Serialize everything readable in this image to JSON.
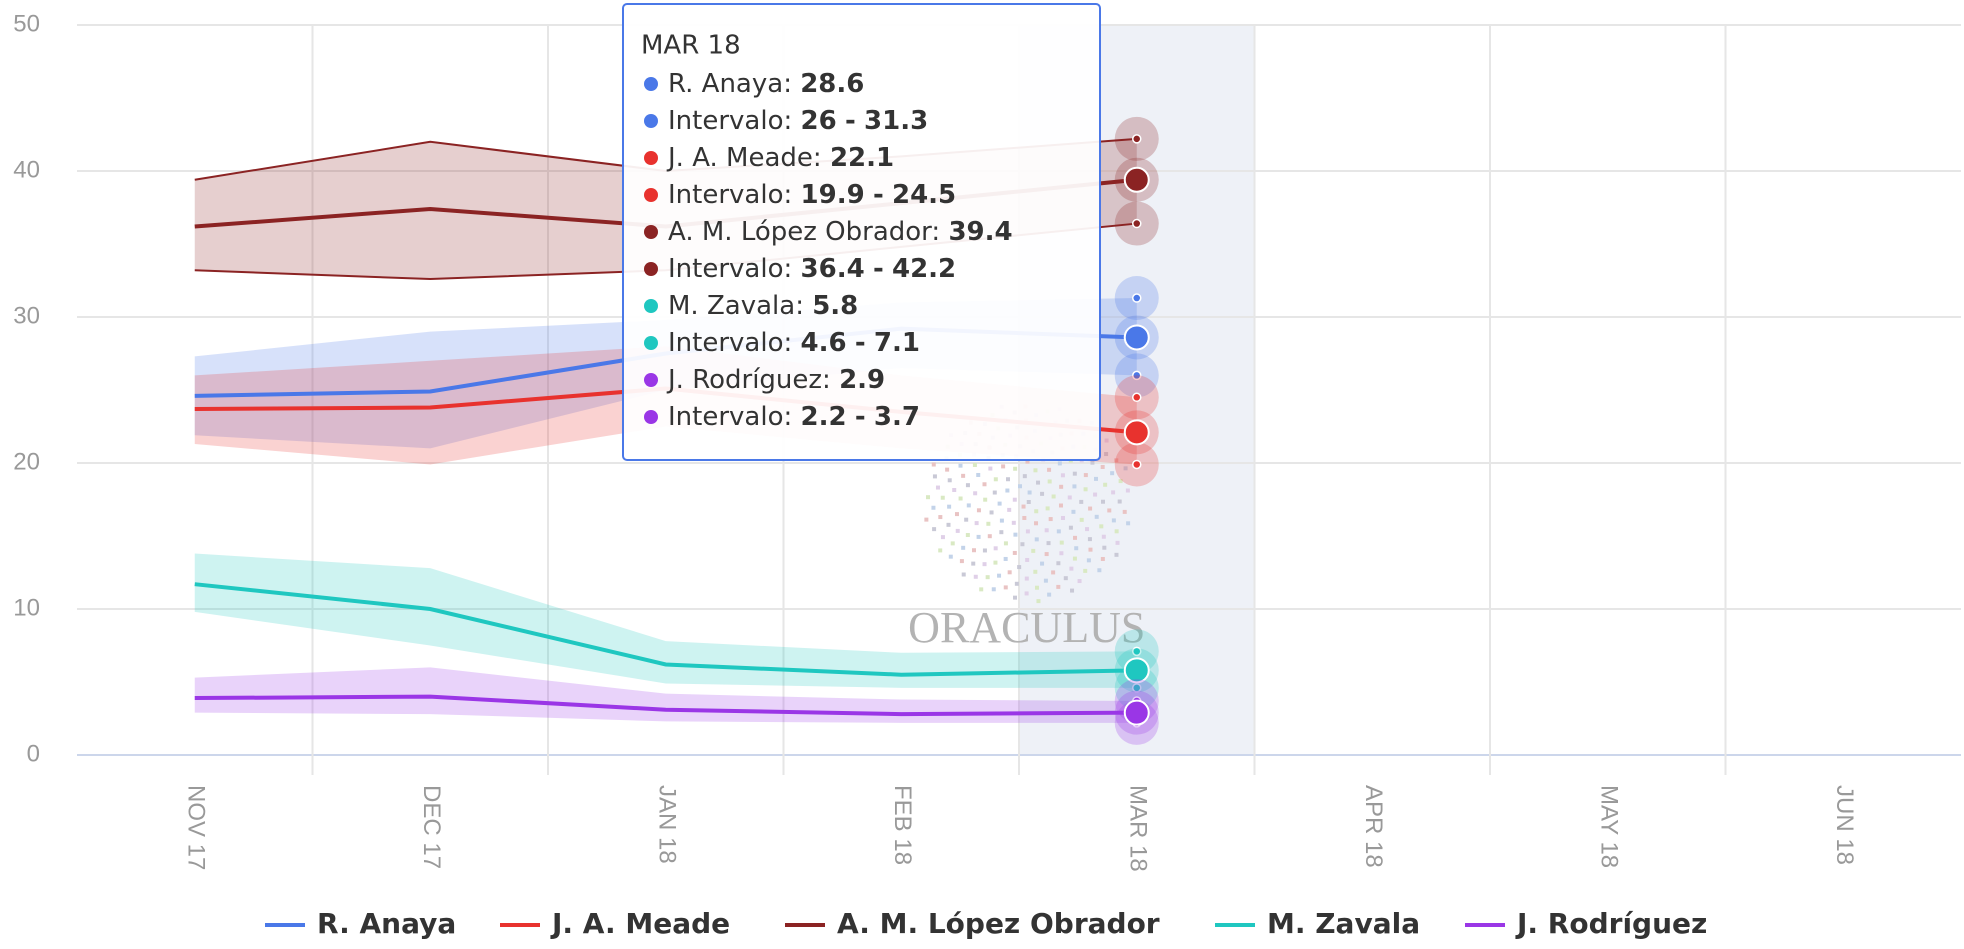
{
  "chart_data": {
    "type": "line_range",
    "categories": [
      "NOV 17",
      "DEC 17",
      "JAN 18",
      "FEB 18",
      "MAR 18",
      "APR 18",
      "MAY 18",
      "JUN 18"
    ],
    "ylim": [
      0,
      50
    ],
    "yticks": [
      0,
      10,
      20,
      30,
      40,
      50
    ],
    "grid": true,
    "legend": "bottom",
    "watermark": "ORACULUS",
    "series": [
      {
        "name": "R. Anaya",
        "color": "#4a78e8",
        "values": [
          24.6,
          24.9,
          27.5,
          29.2,
          28.6,
          null,
          null,
          null
        ],
        "lower": [
          21.9,
          21,
          25,
          26.5,
          26,
          null,
          null,
          null
        ],
        "upper": [
          27.3,
          29,
          29.8,
          31,
          31.3,
          null,
          null,
          null
        ]
      },
      {
        "name": "J. A. Meade",
        "color": "#e8322e",
        "values": [
          23.7,
          23.8,
          25.1,
          23.5,
          22.1,
          null,
          null,
          null
        ],
        "lower": [
          21.3,
          19.9,
          22.5,
          21,
          19.9,
          null,
          null,
          null
        ],
        "upper": [
          26,
          27,
          28,
          26,
          24.5,
          null,
          null,
          null
        ]
      },
      {
        "name": "A. M. López Obrador",
        "color": "#8b2323",
        "band_outline": true,
        "values": [
          36.2,
          37.4,
          36.2,
          37.8,
          39.4,
          null,
          null,
          null
        ],
        "lower": [
          33.2,
          32.6,
          33.2,
          34.8,
          36.4,
          null,
          null,
          null
        ],
        "upper": [
          39.4,
          42,
          40,
          41,
          42.2,
          null,
          null,
          null
        ]
      },
      {
        "name": "M. Zavala",
        "color": "#1fc7c0",
        "values": [
          11.7,
          10,
          6.2,
          5.5,
          5.8,
          null,
          null,
          null
        ],
        "lower": [
          9.8,
          7.5,
          4.9,
          4.6,
          4.6,
          null,
          null,
          null
        ],
        "upper": [
          13.8,
          12.8,
          7.8,
          7,
          7.1,
          null,
          null,
          null
        ]
      },
      {
        "name": "J. Rodríguez",
        "color": "#9a36e6",
        "values": [
          3.9,
          4,
          3.1,
          2.8,
          2.9,
          null,
          null,
          null
        ],
        "lower": [
          2.9,
          2.8,
          2.3,
          2.2,
          2.2,
          null,
          null,
          null
        ],
        "upper": [
          5.3,
          6,
          4.2,
          3.8,
          3.7,
          null,
          null,
          null
        ]
      }
    ],
    "tooltip": {
      "index": 4,
      "interval_label": "Intervalo",
      "name_separator": ":",
      "range_separator": "-"
    }
  }
}
